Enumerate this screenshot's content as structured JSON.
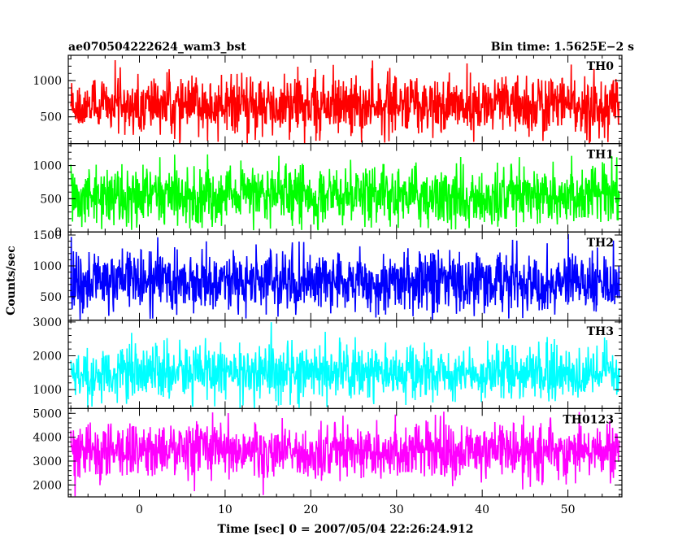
{
  "header": {
    "title": "ae070504222624_wam3_bst",
    "bin_time": "Bin time: 1.5625E−2 s"
  },
  "axes": {
    "xlabel": "Time [sec] 0 = 2007/05/04 22:26:24.912",
    "ylabel": "Counts/sec"
  },
  "chart_data": {
    "type": "line",
    "x_range": [
      -8.3,
      56.3
    ],
    "data_x_range": [
      -8.0,
      56.0
    ],
    "x_ticks": [
      0,
      10,
      20,
      30,
      40,
      50
    ],
    "x_tick_labels": [
      "0",
      "10",
      "20",
      "30",
      "40",
      "50"
    ],
    "panels": [
      {
        "name": "TH0",
        "color": "#ff0000",
        "ylim": [
          130,
          1350
        ],
        "yticks": [
          500,
          1000
        ],
        "ytick_labels": [
          "500",
          "1000"
        ],
        "mean": 650,
        "spread": 230,
        "min": 130,
        "max": 1350
      },
      {
        "name": "TH1",
        "color": "#00ff00",
        "ylim": [
          0,
          1330
        ],
        "yticks": [
          0,
          500,
          1000
        ],
        "ytick_labels": [
          "0",
          "500",
          "1000"
        ],
        "mean": 550,
        "spread": 250,
        "min": 20,
        "max": 1330
      },
      {
        "name": "TH2",
        "color": "#0000ff",
        "ylim": [
          120,
          1550
        ],
        "yticks": [
          500,
          1000,
          1500
        ],
        "ytick_labels": [
          "500",
          "1000",
          "1500"
        ],
        "mean": 750,
        "spread": 280,
        "min": 120,
        "max": 1550
      },
      {
        "name": "TH3",
        "color": "#00ffff",
        "ylim": [
          440,
          3050
        ],
        "yticks": [
          1000,
          2000,
          3000
        ],
        "ytick_labels": [
          "1000",
          "2000",
          "3000"
        ],
        "mean": 1500,
        "spread": 450,
        "min": 440,
        "max": 3050
      },
      {
        "name": "TH0123",
        "color": "#ff00ff",
        "ylim": [
          1500,
          5200
        ],
        "yticks": [
          2000,
          3000,
          4000,
          5000
        ],
        "ytick_labels": [
          "2000",
          "3000",
          "4000",
          "5000"
        ],
        "mean": 3400,
        "spread": 650,
        "min": 1500,
        "max": 5200
      }
    ]
  }
}
